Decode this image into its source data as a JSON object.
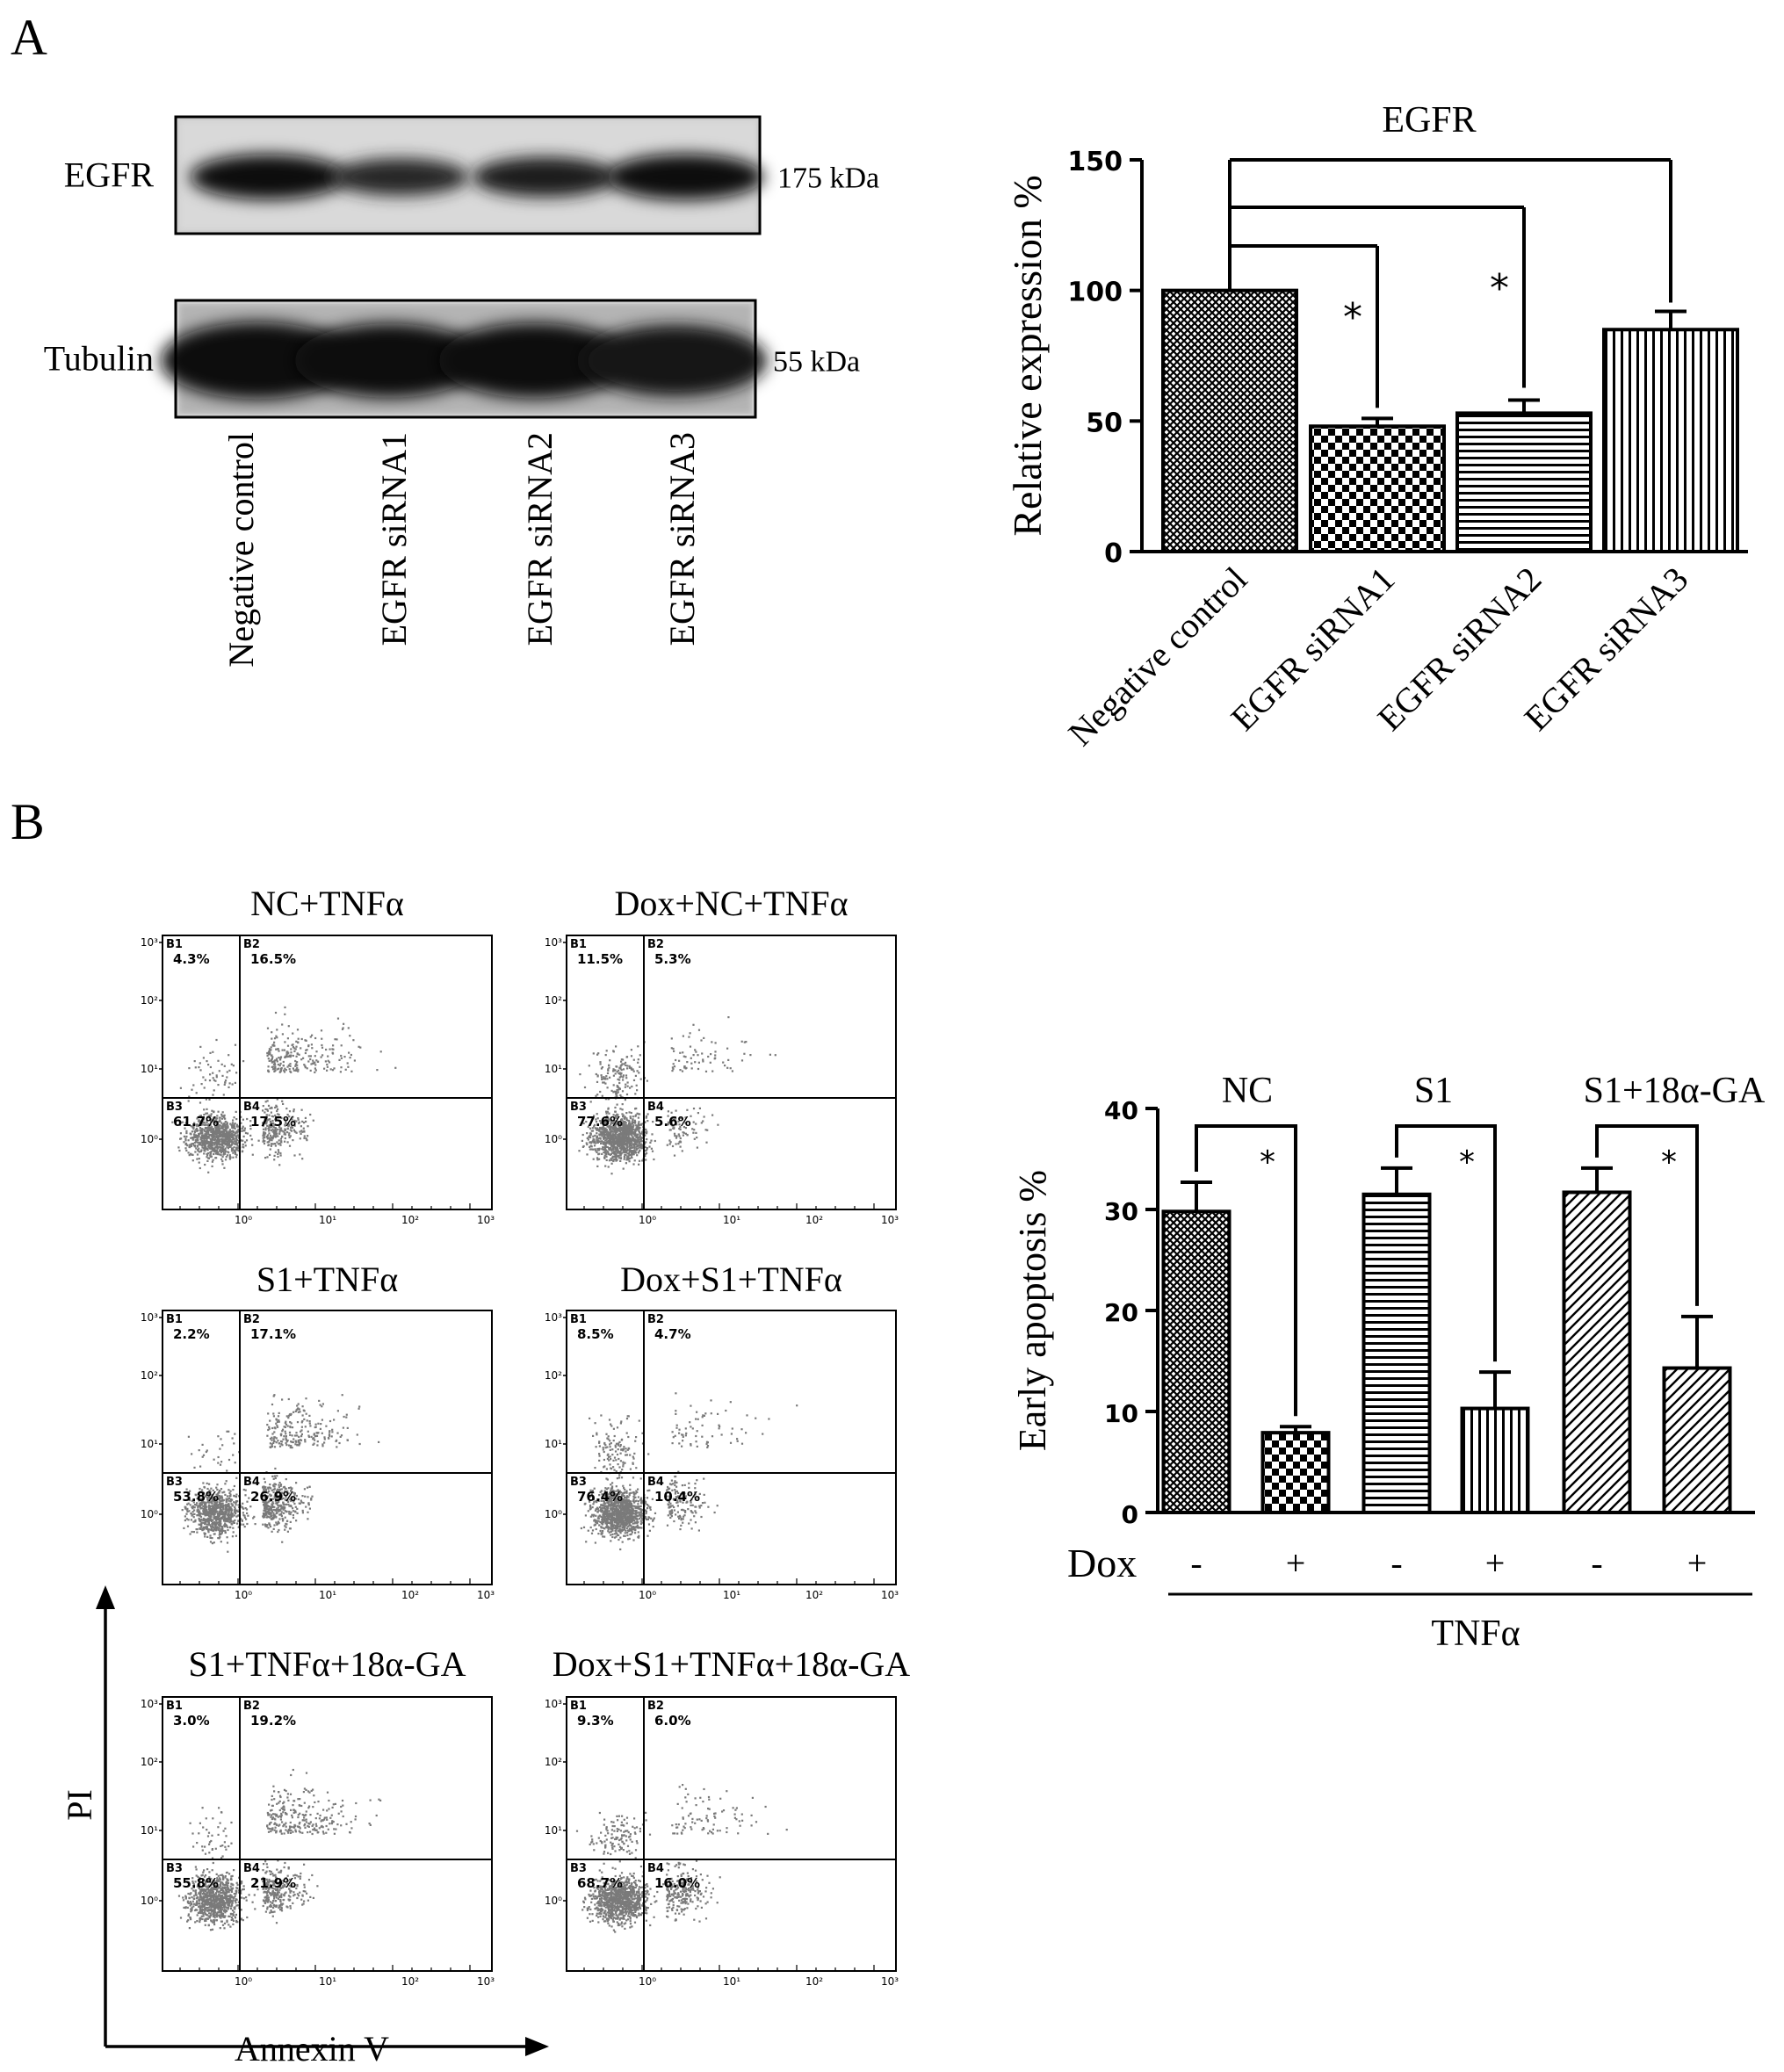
{
  "panels": {
    "a_label": "A",
    "b_label": "B"
  },
  "western_blot": {
    "rows": [
      {
        "name": "EGFR",
        "size": "175 kDa",
        "intensity": [
          0.95,
          0.6,
          0.72,
          0.98
        ]
      },
      {
        "name": "Tubulin",
        "size": "55 kDa",
        "intensity": [
          1.0,
          0.92,
          0.95,
          0.85
        ]
      }
    ],
    "lanes": [
      "Negative control",
      "EGFR siRNA1",
      "EGFR siRNA2",
      "EGFR siRNA3"
    ]
  },
  "chart_data": [
    {
      "type": "bar",
      "title": "EGFR",
      "ylabel": "Relative expression %",
      "categories": [
        "Negative control",
        "EGFR siRNA1",
        "EGFR siRNA2",
        "EGFR siRNA3"
      ],
      "values": [
        100,
        48,
        53,
        85
      ],
      "errors": [
        0,
        3,
        5,
        7
      ],
      "ylim": [
        0,
        150
      ],
      "yticks": [
        "0",
        "50",
        "100",
        "150"
      ],
      "patterns": [
        "crosshatch",
        "checker",
        "horizontal",
        "vertical"
      ],
      "significance": [
        {
          "from": 0,
          "to": 1,
          "mark": "*"
        },
        {
          "from": 0,
          "to": 2,
          "mark": "*"
        },
        {
          "from": 0,
          "to": 3,
          "mark": ""
        }
      ]
    },
    {
      "type": "bar",
      "ylabel": "Early apoptosis %",
      "groups": [
        "NC",
        "S1",
        "S1+18α-GA"
      ],
      "values": [
        29.8,
        7.9,
        31.5,
        10.3,
        31.7,
        14.3
      ],
      "errors": [
        2.9,
        0.6,
        2.6,
        3.6,
        2.4,
        5.1
      ],
      "dox": [
        "-",
        "+",
        "-",
        "+",
        "-",
        "+"
      ],
      "dox_label": "Dox",
      "treatment_label": "TNFα",
      "ylim": [
        0,
        40
      ],
      "yticks": [
        "0",
        "10",
        "20",
        "30",
        "40"
      ],
      "patterns": [
        "crosshatch",
        "checker",
        "horizontal",
        "vertical",
        "diagonal",
        "diagonal"
      ],
      "significance": [
        {
          "from": 0,
          "to": 1,
          "mark": "*"
        },
        {
          "from": 2,
          "to": 3,
          "mark": "*"
        },
        {
          "from": 4,
          "to": 5,
          "mark": "*"
        }
      ]
    },
    {
      "type": "scatter",
      "xlabel": "Annexin V",
      "ylabel": "PI",
      "log_ticks_x": [
        "10⁰",
        "10¹",
        "10²",
        "10³"
      ],
      "log_ticks_y": [
        "10⁰",
        "10¹",
        "10²",
        "10³"
      ],
      "plots": [
        {
          "title": "NC+TNFα",
          "quadrants": [
            {
              "id": "B1",
              "pct": "4.3%"
            },
            {
              "id": "B2",
              "pct": "16.5%"
            },
            {
              "id": "B3",
              "pct": "61.7%"
            },
            {
              "id": "B4",
              "pct": "17.5%"
            }
          ]
        },
        {
          "title": "Dox+NC+TNFα",
          "quadrants": [
            {
              "id": "B1",
              "pct": "11.5%"
            },
            {
              "id": "B2",
              "pct": "5.3%"
            },
            {
              "id": "B3",
              "pct": "77.6%"
            },
            {
              "id": "B4",
              "pct": "5.6%"
            }
          ]
        },
        {
          "title": "S1+TNFα",
          "quadrants": [
            {
              "id": "B1",
              "pct": "2.2%"
            },
            {
              "id": "B2",
              "pct": "17.1%"
            },
            {
              "id": "B3",
              "pct": "53.8%"
            },
            {
              "id": "B4",
              "pct": "26.9%"
            }
          ]
        },
        {
          "title": "Dox+S1+TNFα",
          "quadrants": [
            {
              "id": "B1",
              "pct": "8.5%"
            },
            {
              "id": "B2",
              "pct": "4.7%"
            },
            {
              "id": "B3",
              "pct": "76.4%"
            },
            {
              "id": "B4",
              "pct": "10.4%"
            }
          ]
        },
        {
          "title": "S1+TNFα+18α-GA",
          "quadrants": [
            {
              "id": "B1",
              "pct": "3.0%"
            },
            {
              "id": "B2",
              "pct": "19.2%"
            },
            {
              "id": "B3",
              "pct": "55.8%"
            },
            {
              "id": "B4",
              "pct": "21.9%"
            }
          ]
        },
        {
          "title": "Dox+S1+TNFα+18α-GA",
          "quadrants": [
            {
              "id": "B1",
              "pct": "9.3%"
            },
            {
              "id": "B2",
              "pct": "6.0%"
            },
            {
              "id": "B3",
              "pct": "68.7%"
            },
            {
              "id": "B4",
              "pct": "16.0%"
            }
          ]
        }
      ]
    }
  ]
}
